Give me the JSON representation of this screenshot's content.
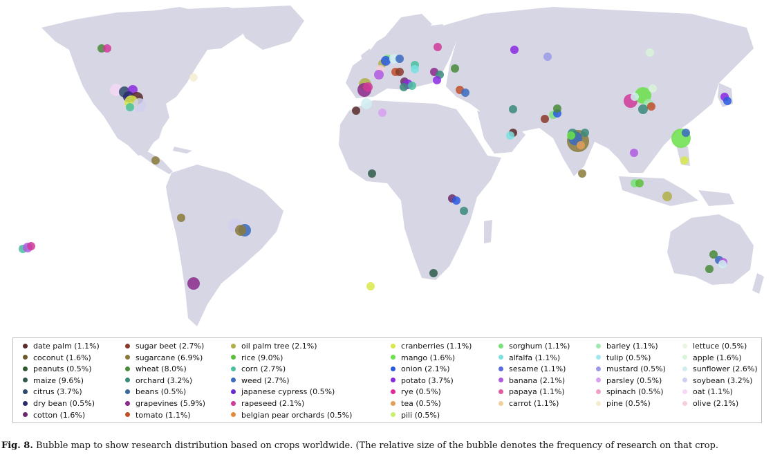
{
  "caption": {
    "label": "Fig. 8.",
    "text": "Bubble map to show research distribution based on crops worldwide. (The relative size of the bubble denotes the frequency of research on that crop."
  },
  "colors": {
    "land": "#d6d6e4",
    "ocean": "#ffffff"
  },
  "legend": {
    "columns": [
      [
        {
          "label": "date palm (1.1%)",
          "color": "#5a2a2a"
        },
        {
          "label": "coconut (1.6%)",
          "color": "#6b5a2c"
        },
        {
          "label": "peanuts (0.5%)",
          "color": "#2f5a2f"
        },
        {
          "label": "maize (9.6%)",
          "color": "#2f5a4a"
        },
        {
          "label": "citrus (3.7%)",
          "color": "#2d4a6a"
        },
        {
          "label": "dry bean (0.5%)",
          "color": "#2c2a6e"
        },
        {
          "label": "cotton (1.6%)",
          "color": "#6a2a6a"
        }
      ],
      [
        {
          "label": "sugar beet (2.7%)",
          "color": "#8a3a2a"
        },
        {
          "label": "sugarcane (6.9%)",
          "color": "#8a7a3a"
        },
        {
          "label": "wheat (8.0%)",
          "color": "#4a8a3a"
        },
        {
          "label": "orchard (3.2%)",
          "color": "#3a8a7a"
        },
        {
          "label": "beans (0.5%)",
          "color": "#3a6a9a"
        },
        {
          "label": "grapevines (5.9%)",
          "color": "#8a2a8a"
        },
        {
          "label": "tomato (1.1%)",
          "color": "#c0502a"
        }
      ],
      [
        {
          "label": "oil palm tree (2.1%)",
          "color": "#b0b04a"
        },
        {
          "label": "rice (9.0%)",
          "color": "#5ac03a"
        },
        {
          "label": "corn (2.7%)",
          "color": "#4ac0a0"
        },
        {
          "label": "weed (2.7%)",
          "color": "#3a6ac0"
        },
        {
          "label": "japanese cypress (0.5%)",
          "color": "#6a2ad0"
        },
        {
          "label": "rapeseed (2.1%)",
          "color": "#d03a9a"
        },
        {
          "label": "belgian pear orchards (0.5%)",
          "color": "#e08a3a"
        }
      ],
      [
        {
          "label": "cranberries (1.1%)",
          "color": "#d8e84a"
        },
        {
          "label": "mango (1.6%)",
          "color": "#6ae04a"
        },
        {
          "label": "onion (2.1%)",
          "color": "#2a5ae0"
        },
        {
          "label": "potato (3.7%)",
          "color": "#8a2ae0"
        },
        {
          "label": "rye (0.5%)",
          "color": "#e02a9a"
        },
        {
          "label": "tea (0.5%)",
          "color": "#e0a05a"
        },
        {
          "label": "pili (0.5%)",
          "color": "#c8f06a"
        }
      ],
      [
        {
          "label": "sorghum (1.1%)",
          "color": "#7ae07a"
        },
        {
          "label": "alfalfa (1.1%)",
          "color": "#7ae0e0"
        },
        {
          "label": "sesame (1.1%)",
          "color": "#5a6ae0"
        },
        {
          "label": "banana (2.1%)",
          "color": "#b05ae0"
        },
        {
          "label": "papaya (1.1%)",
          "color": "#e05aa0"
        },
        {
          "label": "carrot (1.1%)",
          "color": "#f0d0a0"
        }
      ],
      [
        {
          "label": "barley (1.1%)",
          "color": "#a0e8b0"
        },
        {
          "label": "tulip (0.5%)",
          "color": "#a0e8f0"
        },
        {
          "label": "mustard (0.5%)",
          "color": "#9a9ae8"
        },
        {
          "label": "parsley (0.5%)",
          "color": "#d8a0f0"
        },
        {
          "label": "spinach (0.5%)",
          "color": "#f0a0c8"
        },
        {
          "label": "pine (0.5%)",
          "color": "#f5ecd0"
        }
      ],
      [
        {
          "label": "lettuce (0.5%)",
          "color": "#e8f5e0"
        },
        {
          "label": "apple (1.6%)",
          "color": "#d8f5d8"
        },
        {
          "label": "sunflower (2.6%)",
          "color": "#d0eef0"
        },
        {
          "label": "soybean (3.2%)",
          "color": "#d0d0f0"
        },
        {
          "label": "oat (1.1%)",
          "color": "#f5d8f5"
        },
        {
          "label": "olive (2.1%)",
          "color": "#f5d0d8"
        }
      ]
    ]
  }
}
